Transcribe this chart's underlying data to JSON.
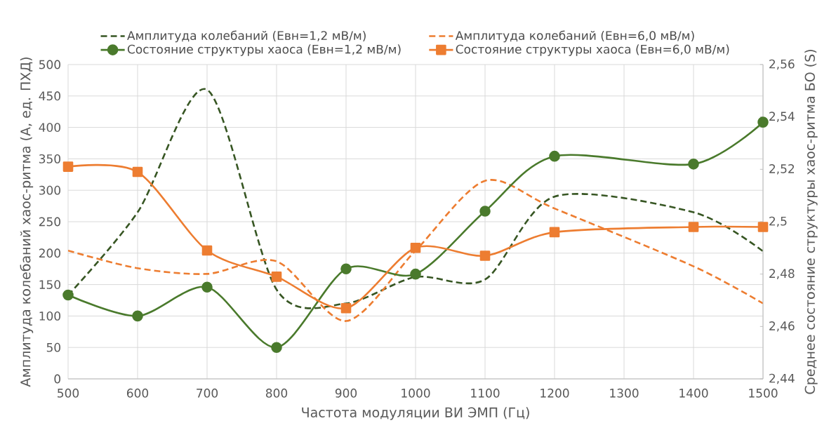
{
  "chart_data": {
    "type": "line",
    "xlabel": "Частота модуляции ВИ ЭМП (Гц)",
    "ylabel": "Амплитуда колебаний хаос-ритма (А, ед. ПХД)",
    "y2label": "Среднее состояние структуры хаос-ритма БО (S)",
    "x": [
      500,
      600,
      700,
      800,
      900,
      1000,
      1100,
      1200,
      1400,
      1500
    ],
    "xlim": [
      500,
      1500
    ],
    "xticks": [
      500,
      600,
      700,
      800,
      900,
      1000,
      1100,
      1200,
      1300,
      1400,
      1500
    ],
    "ylim": [
      0,
      500
    ],
    "yticks": [
      0,
      50,
      100,
      150,
      200,
      250,
      300,
      350,
      400,
      450,
      500
    ],
    "y2lim": [
      2.44,
      2.56
    ],
    "y2ticks": [
      {
        "value": 2.44,
        "label": "2,44"
      },
      {
        "value": 2.46,
        "label": "2,46"
      },
      {
        "value": 2.48,
        "label": "2,48"
      },
      {
        "value": 2.5,
        "label": "2,5"
      },
      {
        "value": 2.52,
        "label": "2,52"
      },
      {
        "value": 2.54,
        "label": "2,54"
      },
      {
        "value": 2.56,
        "label": "2,56"
      }
    ],
    "grid": true,
    "legend": "top",
    "series": [
      {
        "name": "Амплитуда колебаний (Евн=1,2 мВ/м)",
        "color": "#375623",
        "line_style": "dashed",
        "marker": "none",
        "values": [
          133,
          265,
          460,
          142,
          120,
          162,
          158,
          290,
          265,
          203
        ]
      },
      {
        "name": "Амплитуда колебаний (Евн=6,0 мВ/м)",
        "color": "#ed7d31",
        "line_style": "dashed",
        "marker": "none",
        "values": [
          204,
          176,
          167,
          187,
          92,
          204,
          315,
          271,
          179,
          120
        ]
      },
      {
        "name": "Состояние структуры хаоса (Евн=1,2 мВ/м)",
        "color": "#4a7a2c",
        "line_style": "solid",
        "marker": "circle",
        "axis": "y2",
        "values": [
          2.472,
          2.464,
          2.475,
          2.452,
          2.482,
          2.48,
          2.504,
          2.525,
          2.522,
          2.538
        ]
      },
      {
        "name": "Состояние структуры хаоса (Евн=6,0 мВ/м)",
        "color": "#ed7d31",
        "line_style": "solid",
        "marker": "square",
        "axis": "y2",
        "values": [
          2.521,
          2.519,
          2.489,
          2.479,
          2.467,
          2.49,
          2.487,
          2.496,
          2.498,
          2.498
        ]
      }
    ]
  }
}
